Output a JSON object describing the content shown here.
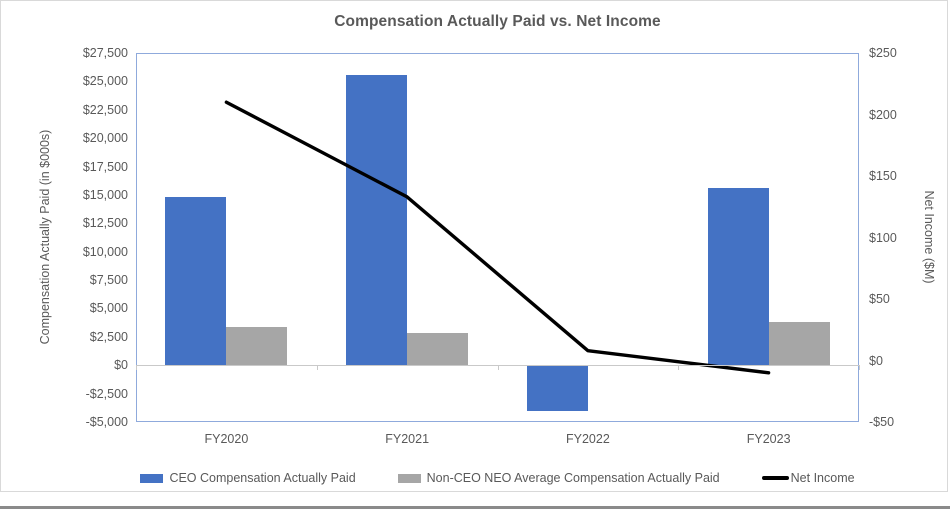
{
  "chart_data": {
    "type": "combo-bar-line",
    "title": "Compensation Actually Paid vs. Net Income",
    "categories": [
      "FY2020",
      "FY2021",
      "FY2022",
      "FY2023"
    ],
    "series": [
      {
        "name": "CEO Compensation Actually Paid",
        "type": "bar",
        "axis": "left",
        "color": "#4472c4",
        "values": [
          14800,
          25600,
          -4000,
          15600
        ]
      },
      {
        "name": "Non-CEO NEO Average Compensation Actually Paid",
        "type": "bar",
        "axis": "left",
        "color": "#a6a6a6",
        "values": [
          3400,
          2800,
          0,
          3800
        ]
      },
      {
        "name": "Net Income",
        "type": "line",
        "axis": "right",
        "color": "#000000",
        "values": [
          210,
          133,
          8,
          -10
        ]
      }
    ],
    "left_axis": {
      "title": "Compensation Actually Paid (in $000s)",
      "min": -5000,
      "max": 27500,
      "step": 2500,
      "tick_labels": [
        "$27,500",
        "$25,000",
        "$22,500",
        "$20,000",
        "$17,500",
        "$15,000",
        "$12,500",
        "$10,000",
        "$7,500",
        "$5,000",
        "$2,500",
        "$0",
        "-$2,500",
        "-$5,000"
      ]
    },
    "right_axis": {
      "title": "Net Income ($M)",
      "min": -50,
      "max": 250,
      "step": 50,
      "tick_labels": [
        "$250",
        "$200",
        "$150",
        "$100",
        "$50",
        "$0",
        "-$50"
      ]
    },
    "grid": "horizontal",
    "legend_position": "bottom",
    "styles": {
      "title_color": "#595959",
      "text_color": "#595959",
      "gridline_color": "#d9d9d9",
      "category_axis_color": "#c9c9c9",
      "plot_border_color": "#8faadc",
      "chart_border_color": "#d9d9d9",
      "bottom_rule_color": "#8a8a8a"
    }
  }
}
